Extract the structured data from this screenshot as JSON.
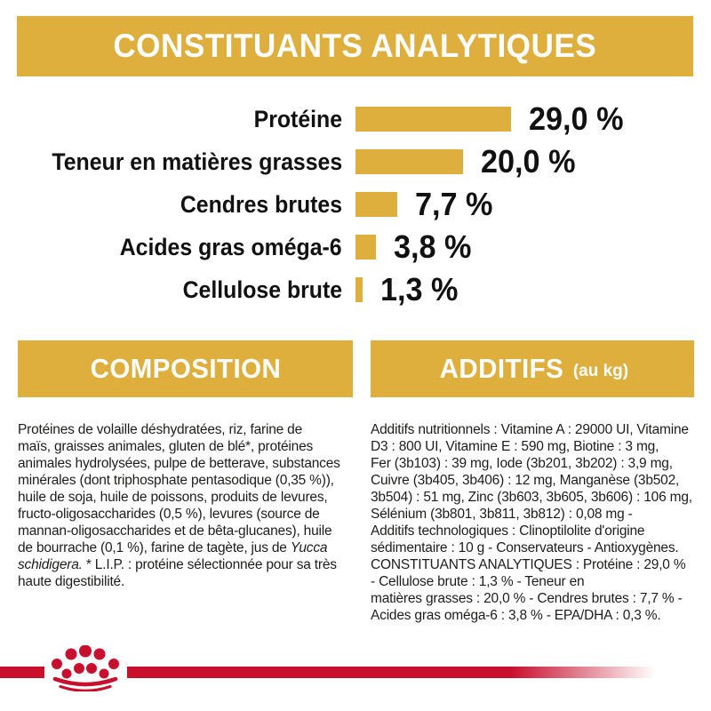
{
  "colors": {
    "gold": "#DFAF3E",
    "brand_red": "#C8102E",
    "text": "#1d1d1b",
    "header_text": "#ffffff"
  },
  "header": {
    "title": "CONSTITUANTS ANALYTIQUES"
  },
  "chart_data": {
    "type": "bar",
    "orientation": "horizontal",
    "title": "CONSTITUANTS ANALYTIQUES",
    "unit": "%",
    "categories": [
      "Protéine",
      "Teneur en matières grasses",
      "Cendres brutes",
      "Acides gras oméga-6",
      "Cellulose brute"
    ],
    "values": [
      29.0,
      20.0,
      7.7,
      3.8,
      1.3
    ],
    "value_labels": [
      "29,0 %",
      "20,0 %",
      "7,7 %",
      "3,8 %",
      "1,3 %"
    ],
    "bar_color": "#DFAF3E",
    "xlim": [
      0,
      30
    ],
    "grid": false,
    "legend": false
  },
  "composition": {
    "title": "COMPOSITION",
    "body_parts": [
      {
        "text": "Protéines de volaille déshydratées, riz, farine de\nmaïs, graisses animales, gluten de blé*, protéines\nanimales hydrolysées, pulpe de betterave, substances\nminérales (dont triphosphate pentasodique (0,35 %)),\nhuile de soja, huile de poissons, produits de levures,\nfructo-oligosaccharides (0,5 %), levures (source de\nmannan-oligosaccharides et de bêta-glucanes), huile\nde bourrache (0,1 %), farine de tagète, jus de ",
        "italic": false
      },
      {
        "text": "Yucca\nschidigera.",
        "italic": true
      },
      {
        "text": " * L.I.P. : protéine sélectionnée pour sa très\nhaute digestibilité.",
        "italic": false
      }
    ]
  },
  "additifs": {
    "title": "ADDITIFS",
    "subtitle": "(au kg)",
    "body": "Additifs nutritionnels : Vitamine A : 29000 UI, Vitamine\nD3 : 800 UI, Vitamine E : 590 mg, Biotine : 3 mg,\nFer (3b103) : 39 mg, Iode (3b201, 3b202) : 3,9 mg,\nCuivre (3b405, 3b406) : 12 mg, Manganèse (3b502,\n3b504) : 51 mg, Zinc (3b603, 3b605, 3b606) : 106 mg,\nSélénium (3b801, 3b811, 3b812) : 0,08 mg -\nAdditifs technologiques : Clinoptilolite d'origine\nsédimentaire : 10 g - Conservateurs - Antioxygènes.\nCONSTITUANTS ANALYTIQUES : Protéine : 29,0 %\n- Cellulose brute : 1,3 % - Teneur en\nmatières grasses : 20,0 % - Cendres brutes : 7,7 % -\nAcides gras oméga-6 : 3,8 % - EPA/DHA : 0,3 %."
  },
  "footer": {
    "logo": "royal-canin-crown-logo"
  }
}
